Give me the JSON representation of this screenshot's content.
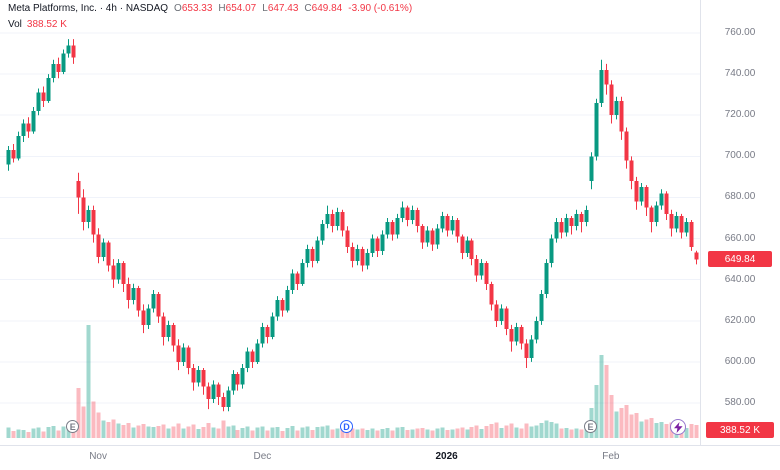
{
  "header": {
    "title": "Meta Platforms, Inc. · 4h · NASDAQ",
    "ohlc": [
      {
        "k": "O",
        "v": "653.33"
      },
      {
        "k": "H",
        "v": "654.07"
      },
      {
        "k": "L",
        "v": "647.43"
      },
      {
        "k": "C",
        "v": "649.84"
      }
    ],
    "change": "-3.90 (-0.61%)",
    "vol_label": "Vol",
    "vol_value": "388.52 K"
  },
  "colors": {
    "up": "#089981",
    "down": "#f23645",
    "vol_up": "rgba(8,153,129,0.38)",
    "vol_down": "rgba(242,54,69,0.34)",
    "grid": "#f0f3fa",
    "badge": "#f23645"
  },
  "price_axis": {
    "ticks": [
      "760.00",
      "740.00",
      "720.00",
      "700.00",
      "680.00",
      "660.00",
      "640.00",
      "620.00",
      "600.00",
      "580.00"
    ],
    "last_price_label": "649.84",
    "last_volume_label": "388.52 K"
  },
  "time_axis": {
    "labels": [
      {
        "text": "Nov",
        "index": 18,
        "major": false
      },
      {
        "text": "Dec",
        "index": 51,
        "major": false
      },
      {
        "text": "2026",
        "index": 88,
        "major": true
      },
      {
        "text": "Feb",
        "index": 121,
        "major": false
      }
    ]
  },
  "markers": [
    {
      "type": "earnings",
      "label": "E",
      "index": 13,
      "color": "#787b86"
    },
    {
      "type": "dividend",
      "label": "D",
      "index": 68,
      "color": "#2962ff"
    },
    {
      "type": "earnings",
      "label": "E",
      "index": 117,
      "color": "#787b86"
    }
  ],
  "chart_data": {
    "type": "candlestick",
    "title": "Meta Platforms, Inc.",
    "interval": "4h",
    "exchange": "NASDAQ",
    "price_range": [
      580,
      760
    ],
    "y_ticks": [
      760,
      740,
      720,
      700,
      680,
      660,
      640,
      620,
      600,
      580
    ],
    "x_axis_labels": [
      "Nov",
      "Dec",
      "2026",
      "Feb"
    ],
    "last": {
      "o": 653.33,
      "h": 654.07,
      "l": 647.43,
      "c": 649.84,
      "change": -3.9,
      "change_pct": -0.61,
      "volume_k": 388.52
    },
    "volume_unit": "K",
    "candles": [
      [
        696,
        705,
        693,
        703,
        320
      ],
      [
        703,
        706,
        697,
        699,
        210
      ],
      [
        699,
        712,
        698,
        710,
        260
      ],
      [
        710,
        718,
        707,
        716,
        240
      ],
      [
        716,
        719,
        709,
        712,
        180
      ],
      [
        712,
        724,
        711,
        722,
        290
      ],
      [
        722,
        733,
        720,
        731,
        310
      ],
      [
        731,
        734,
        724,
        727,
        200
      ],
      [
        727,
        740,
        726,
        738,
        330
      ],
      [
        738,
        747,
        736,
        745,
        360
      ],
      [
        745,
        748,
        738,
        741,
        220
      ],
      [
        741,
        752,
        740,
        750,
        340
      ],
      [
        750,
        757,
        748,
        754,
        300
      ],
      [
        754,
        757,
        745,
        748,
        420
      ],
      [
        688,
        692,
        672,
        680,
        1500
      ],
      [
        680,
        684,
        664,
        668,
        950
      ],
      [
        668,
        676,
        665,
        674,
        3400
      ],
      [
        674,
        676,
        658,
        662,
        1100
      ],
      [
        662,
        665,
        648,
        651,
        760
      ],
      [
        651,
        660,
        649,
        658,
        520
      ],
      [
        658,
        659,
        644,
        647,
        480
      ],
      [
        647,
        650,
        636,
        640,
        560
      ],
      [
        640,
        650,
        638,
        648,
        430
      ],
      [
        648,
        649,
        634,
        638,
        390
      ],
      [
        638,
        641,
        626,
        630,
        450
      ],
      [
        630,
        638,
        628,
        636,
        310
      ],
      [
        636,
        637,
        622,
        625,
        380
      ],
      [
        625,
        628,
        614,
        618,
        420
      ],
      [
        618,
        628,
        616,
        626,
        350
      ],
      [
        626,
        635,
        624,
        633,
        330
      ],
      [
        633,
        634,
        619,
        622,
        360
      ],
      [
        622,
        624,
        608,
        612,
        400
      ],
      [
        612,
        620,
        610,
        618,
        280
      ],
      [
        618,
        619,
        605,
        608,
        340
      ],
      [
        608,
        611,
        596,
        600,
        430
      ],
      [
        600,
        609,
        598,
        607,
        290
      ],
      [
        607,
        608,
        594,
        597,
        350
      ],
      [
        597,
        599,
        586,
        590,
        410
      ],
      [
        590,
        598,
        588,
        596,
        270
      ],
      [
        596,
        597,
        584,
        588,
        330
      ],
      [
        588,
        590,
        577,
        582,
        450
      ],
      [
        582,
        591,
        580,
        589,
        310
      ],
      [
        589,
        590,
        579,
        583,
        280
      ],
      [
        583,
        585,
        576,
        578,
        520
      ],
      [
        578,
        588,
        576,
        586,
        340
      ],
      [
        586,
        596,
        584,
        594,
        380
      ],
      [
        594,
        595,
        586,
        589,
        240
      ],
      [
        589,
        599,
        587,
        597,
        300
      ],
      [
        597,
        607,
        595,
        605,
        350
      ],
      [
        605,
        606,
        597,
        600,
        230
      ],
      [
        600,
        611,
        599,
        609,
        320
      ],
      [
        609,
        619,
        607,
        617,
        340
      ],
      [
        617,
        618,
        609,
        612,
        220
      ],
      [
        612,
        624,
        611,
        622,
        310
      ],
      [
        622,
        632,
        620,
        630,
        330
      ],
      [
        630,
        631,
        622,
        625,
        210
      ],
      [
        625,
        637,
        624,
        635,
        300
      ],
      [
        635,
        645,
        633,
        643,
        360
      ],
      [
        643,
        644,
        635,
        638,
        230
      ],
      [
        638,
        650,
        637,
        648,
        320
      ],
      [
        648,
        657,
        646,
        655,
        350
      ],
      [
        655,
        656,
        646,
        649,
        240
      ],
      [
        649,
        661,
        648,
        659,
        330
      ],
      [
        659,
        669,
        657,
        667,
        340
      ],
      [
        667,
        676,
        665,
        672,
        380
      ],
      [
        672,
        674,
        663,
        666,
        250
      ],
      [
        666,
        675,
        664,
        673,
        290
      ],
      [
        673,
        674,
        661,
        664,
        270
      ],
      [
        664,
        666,
        653,
        656,
        310
      ],
      [
        656,
        658,
        646,
        649,
        290
      ],
      [
        649,
        657,
        647,
        655,
        260
      ],
      [
        655,
        656,
        644,
        647,
        280
      ],
      [
        647,
        655,
        645,
        653,
        240
      ],
      [
        653,
        662,
        651,
        660,
        290
      ],
      [
        660,
        661,
        651,
        654,
        220
      ],
      [
        654,
        664,
        652,
        662,
        270
      ],
      [
        662,
        670,
        660,
        668,
        300
      ],
      [
        668,
        669,
        659,
        662,
        230
      ],
      [
        662,
        672,
        660,
        670,
        310
      ],
      [
        670,
        678,
        668,
        675,
        330
      ],
      [
        675,
        676,
        666,
        669,
        240
      ],
      [
        669,
        676,
        667,
        674,
        260
      ],
      [
        674,
        675,
        663,
        666,
        280
      ],
      [
        666,
        667,
        655,
        658,
        300
      ],
      [
        658,
        666,
        656,
        664,
        250
      ],
      [
        664,
        665,
        654,
        657,
        230
      ],
      [
        657,
        667,
        655,
        665,
        290
      ],
      [
        665,
        673,
        663,
        671,
        310
      ],
      [
        671,
        672,
        661,
        664,
        240
      ],
      [
        664,
        671,
        662,
        669,
        260
      ],
      [
        669,
        670,
        658,
        661,
        280
      ],
      [
        661,
        662,
        650,
        653,
        320
      ],
      [
        653,
        661,
        651,
        659,
        250
      ],
      [
        659,
        660,
        647,
        650,
        330
      ],
      [
        650,
        652,
        639,
        642,
        380
      ],
      [
        642,
        650,
        640,
        648,
        270
      ],
      [
        648,
        649,
        635,
        638,
        360
      ],
      [
        638,
        639,
        625,
        628,
        420
      ],
      [
        628,
        630,
        617,
        620,
        460
      ],
      [
        620,
        628,
        618,
        626,
        300
      ],
      [
        626,
        627,
        613,
        616,
        380
      ],
      [
        616,
        618,
        605,
        610,
        440
      ],
      [
        610,
        619,
        608,
        617,
        320
      ],
      [
        617,
        618,
        606,
        609,
        290
      ],
      [
        609,
        611,
        597,
        602,
        430
      ],
      [
        602,
        613,
        600,
        611,
        350
      ],
      [
        611,
        622,
        609,
        620,
        380
      ],
      [
        620,
        635,
        618,
        633,
        450
      ],
      [
        633,
        650,
        631,
        648,
        520
      ],
      [
        648,
        662,
        646,
        660,
        480
      ],
      [
        660,
        670,
        658,
        668,
        430
      ],
      [
        668,
        670,
        660,
        663,
        280
      ],
      [
        663,
        672,
        661,
        670,
        300
      ],
      [
        670,
        671,
        662,
        666,
        250
      ],
      [
        666,
        674,
        664,
        672,
        290
      ],
      [
        672,
        673,
        663,
        668,
        260
      ],
      [
        668,
        676,
        666,
        674,
        310
      ],
      [
        688,
        702,
        684,
        700,
        900
      ],
      [
        700,
        728,
        698,
        726,
        1600
      ],
      [
        726,
        747,
        724,
        742,
        2500
      ],
      [
        742,
        745,
        730,
        735,
        2200
      ],
      [
        735,
        737,
        716,
        720,
        1300
      ],
      [
        720,
        729,
        718,
        727,
        800
      ],
      [
        727,
        729,
        708,
        712,
        900
      ],
      [
        712,
        714,
        694,
        698,
        1000
      ],
      [
        698,
        700,
        684,
        688,
        700
      ],
      [
        688,
        690,
        674,
        678,
        750
      ],
      [
        678,
        687,
        676,
        685,
        500
      ],
      [
        685,
        686,
        671,
        675,
        550
      ],
      [
        675,
        676,
        663,
        668,
        600
      ],
      [
        668,
        678,
        666,
        676,
        450
      ],
      [
        676,
        684,
        674,
        682,
        480
      ],
      [
        682,
        683,
        669,
        672,
        420
      ],
      [
        672,
        674,
        661,
        665,
        460
      ],
      [
        665,
        673,
        663,
        671,
        350
      ],
      [
        671,
        672,
        660,
        663,
        320
      ],
      [
        663,
        670,
        661,
        668,
        300
      ],
      [
        668,
        669,
        654,
        656,
        420
      ],
      [
        653.33,
        654.07,
        647.43,
        649.84,
        388.52
      ]
    ]
  }
}
